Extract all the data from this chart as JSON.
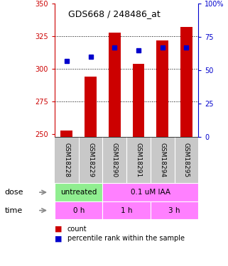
{
  "title": "GDS668 / 248486_at",
  "samples": [
    "GSM18228",
    "GSM18229",
    "GSM18290",
    "GSM18291",
    "GSM18294",
    "GSM18295"
  ],
  "bar_values": [
    253,
    294,
    328,
    304,
    322,
    332
  ],
  "bar_base": 248,
  "percentile_values": [
    57,
    60,
    67,
    65,
    67,
    67
  ],
  "ylim_left": [
    248,
    350
  ],
  "ylim_right": [
    0,
    100
  ],
  "yticks_left": [
    250,
    275,
    300,
    325,
    350
  ],
  "yticks_right": [
    0,
    25,
    50,
    75,
    100
  ],
  "ytick_labels_right": [
    "0",
    "25",
    "50",
    "75",
    "100%"
  ],
  "bar_color": "#cc0000",
  "dot_color": "#0000cc",
  "dose_labels": [
    "untreated",
    "0.1 uM IAA"
  ],
  "dose_facecolors": [
    "#90ee90",
    "#ff80ff"
  ],
  "time_labels": [
    "0 h",
    "1 h",
    "3 h"
  ],
  "time_facecolor": "#ff80ff",
  "left_axis_color": "#cc0000",
  "right_axis_color": "#0000cc",
  "background_color": "#ffffff",
  "legend_items": [
    "count",
    "percentile rank within the sample"
  ],
  "gsm_label_bg": "#c8c8c8"
}
